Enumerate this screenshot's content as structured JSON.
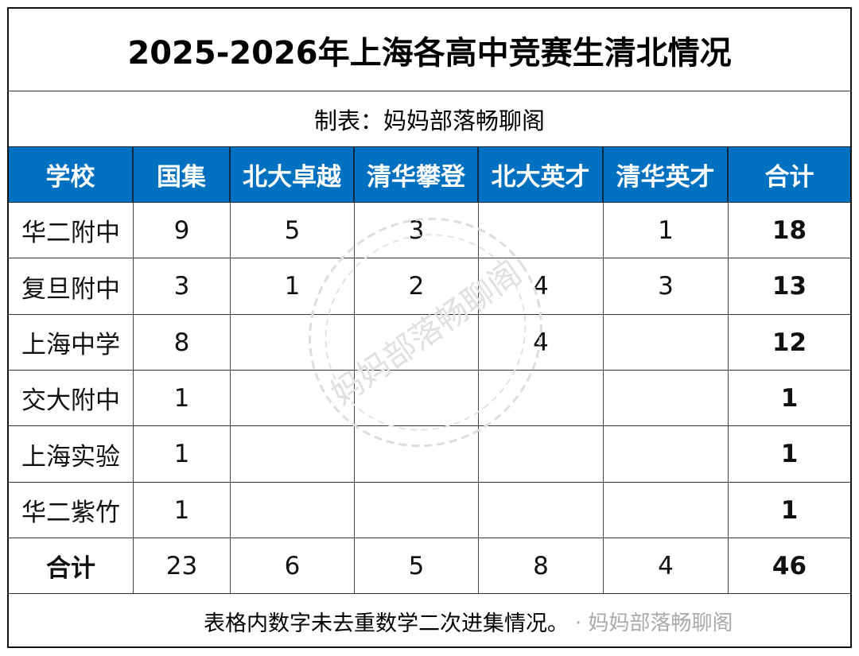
{
  "title": "2025-2026年上海各高中竞赛生清北情况",
  "subtitle": "制表：妈妈部落畅聊阁",
  "header_color": "#0070c0",
  "columns": [
    "学校",
    "国集",
    "北大卓越",
    "清华攀登",
    "北大英才",
    "清华英才",
    "合计"
  ],
  "rows": [
    [
      "华二附中",
      "9",
      "5",
      "3",
      "",
      "1",
      "18"
    ],
    [
      "复旦附中",
      "3",
      "1",
      "2",
      "4",
      "3",
      "13"
    ],
    [
      "上海中学",
      "8",
      "",
      "",
      "4",
      "",
      "12"
    ],
    [
      "交大附中",
      "1",
      "",
      "",
      "",
      "",
      "1"
    ],
    [
      "上海实验",
      "1",
      "",
      "",
      "",
      "",
      "1"
    ],
    [
      "华二紫竹",
      "1",
      "",
      "",
      "",
      "",
      "1"
    ]
  ],
  "total_row": [
    "合计",
    "23",
    "6",
    "5",
    "8",
    "4",
    "46"
  ],
  "footer_note": "表格内数字未去重数学二次进集情况。",
  "footer_watermark": "· 妈妈部落畅聊阁",
  "stamp_text": "妈妈部落畅聊阁"
}
